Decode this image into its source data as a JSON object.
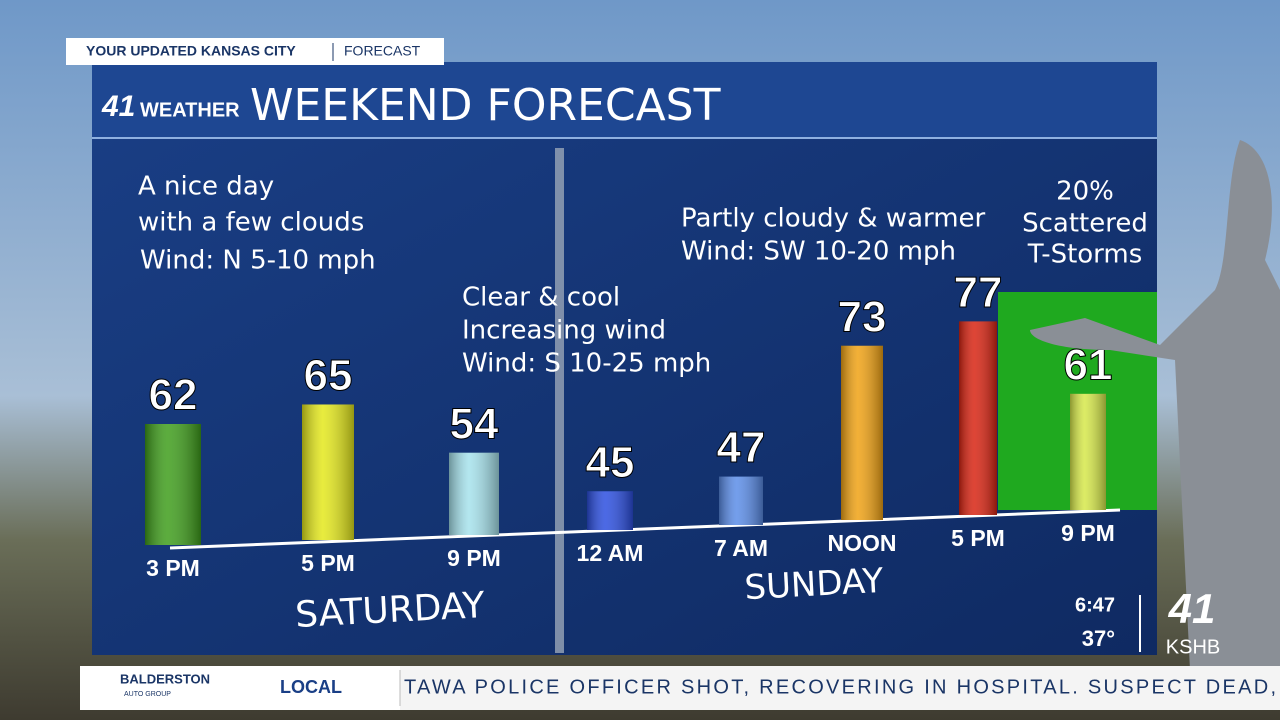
{
  "header": {
    "tab": "YOUR UPDATED KANSAS CITY",
    "tab_section": "FORECAST",
    "logo": "41",
    "logo_text": "WEATHER",
    "title": "WEEKEND FORECAST"
  },
  "chart_data": {
    "type": "bar",
    "categories": [
      "3 PM",
      "5 PM",
      "9 PM",
      "12 AM",
      "7 AM",
      "NOON",
      "5 PM",
      "9 PM"
    ],
    "values": [
      62,
      65,
      54,
      45,
      47,
      73,
      77,
      61
    ],
    "colors": [
      "#3f9e1c",
      "#e4e81c",
      "#a6e2ec",
      "#2c4fe0",
      "#5b8de8",
      "#f0a214",
      "#d82412",
      "#d6e84a"
    ]
  },
  "notes": [
    [
      "A nice day",
      "with a few clouds",
      "Wind: N 5-10 mph"
    ],
    [
      "Clear & cool",
      "Increasing wind",
      "Wind: S 10-25 mph"
    ],
    [
      "Partly cloudy & warmer",
      "Wind: SW 10-20 mph"
    ],
    [
      "20%",
      "Scattered",
      "T-Storms"
    ]
  ],
  "days": [
    "SATURDAY",
    "SUNDAY"
  ],
  "status": {
    "time": "6:47",
    "temp": "37°",
    "station_number": "41",
    "station": "KSHB"
  },
  "ticker": {
    "sponsor": "BALDERSTON",
    "sponsor_sub": "AUTO GROUP",
    "label": "LOCAL",
    "text": "TAWA POLICE OFFICER SHOT, RECOVERING IN HOSPITAL. SUSPECT DEAD,"
  }
}
